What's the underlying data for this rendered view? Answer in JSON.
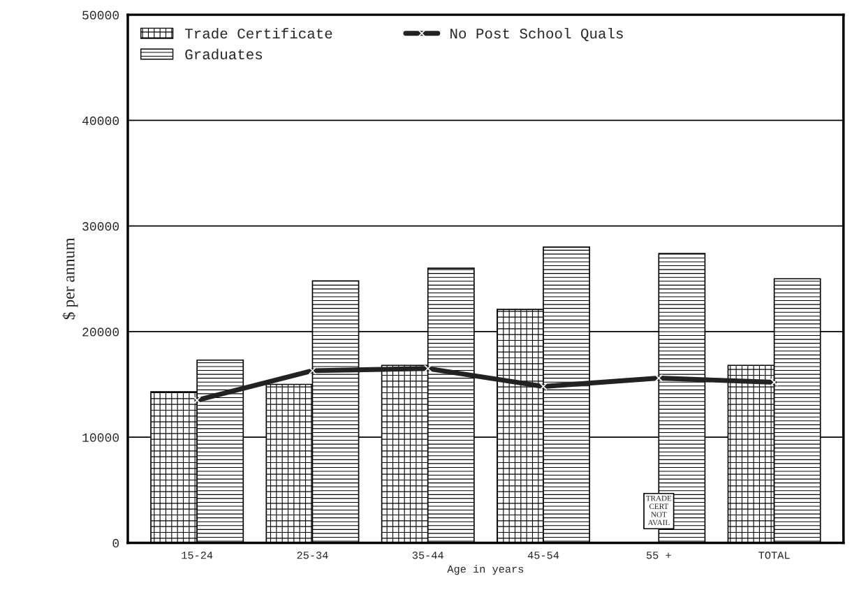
{
  "chart_data": {
    "type": "bar",
    "categories": [
      "15-24",
      "25-34",
      "35-44",
      "45-54",
      "55 +",
      "TOTAL"
    ],
    "series": [
      {
        "name": "Trade Certificate",
        "color": "#000000",
        "values": [
          14300,
          15000,
          16800,
          22100,
          null,
          16800
        ]
      },
      {
        "name": "Graduates",
        "color": "#000000",
        "values": [
          17300,
          24800,
          26000,
          28000,
          27400,
          25000
        ]
      },
      {
        "name": "No Post School Quals",
        "type": "line",
        "color": "#222222",
        "marker": "cross",
        "values": [
          13500,
          16300,
          16500,
          14800,
          15600,
          15200
        ]
      }
    ],
    "xlabel": "Age in years",
    "ylabel": "$ per annum",
    "ylim": [
      0,
      50000
    ],
    "yticks": [
      0,
      10000,
      20000,
      30000,
      40000,
      50000
    ],
    "grid": "y",
    "legend": "top left",
    "annotations": [
      {
        "text": "TRADE\nCERT\nNOT\nAVAIL",
        "x": "55 +",
        "y": 3000
      }
    ]
  }
}
